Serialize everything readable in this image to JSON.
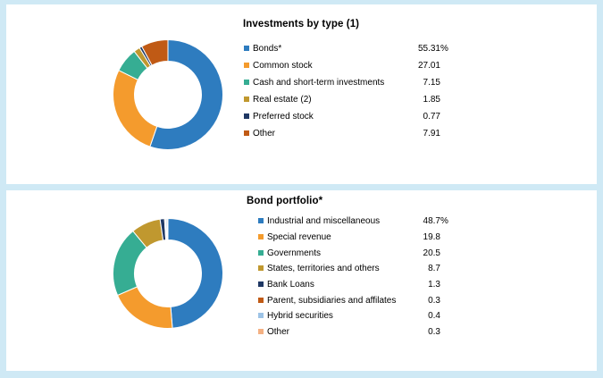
{
  "page": {
    "background_color": "#cfe9f5",
    "panel_color": "#ffffff"
  },
  "chart_data": [
    {
      "type": "pie",
      "subtype": "donut",
      "title": "Investments by type (1)",
      "legend_position": "right",
      "start_angle": "top-clockwise",
      "categories": [
        "Bonds*",
        "Common stock",
        "Cash and short-term investments",
        "Real estate (2)",
        "Preferred stock",
        "Other"
      ],
      "values": [
        55.31,
        27.01,
        7.15,
        1.85,
        0.77,
        7.91
      ],
      "value_labels": [
        "55.31%",
        "27.01",
        "7.15",
        "1.85",
        "0.77",
        "7.91"
      ],
      "colors": [
        "#2e7cbf",
        "#f49b2d",
        "#36ad93",
        "#c0982f",
        "#1f3864",
        "#c05a15"
      ]
    },
    {
      "type": "pie",
      "subtype": "donut",
      "title": "Bond portfolio*",
      "legend_position": "right",
      "start_angle": "top-clockwise",
      "categories": [
        "Industrial and miscellaneous",
        "Special revenue",
        "Governments",
        "States, territories and others",
        "Bank Loans",
        "Parent, subsidiaries and affilates",
        "Hybrid securities",
        "Other"
      ],
      "values": [
        48.7,
        19.8,
        20.5,
        8.7,
        1.3,
        0.3,
        0.4,
        0.3
      ],
      "value_labels": [
        "48.7%",
        "19.8",
        "20.5",
        "8.7",
        "1.3",
        "0.3",
        "0.4",
        "0.3"
      ],
      "colors": [
        "#2e7cbf",
        "#f49b2d",
        "#36ad93",
        "#c0982f",
        "#1f3864",
        "#c05a15",
        "#9dc3e6",
        "#f4b183"
      ]
    }
  ]
}
